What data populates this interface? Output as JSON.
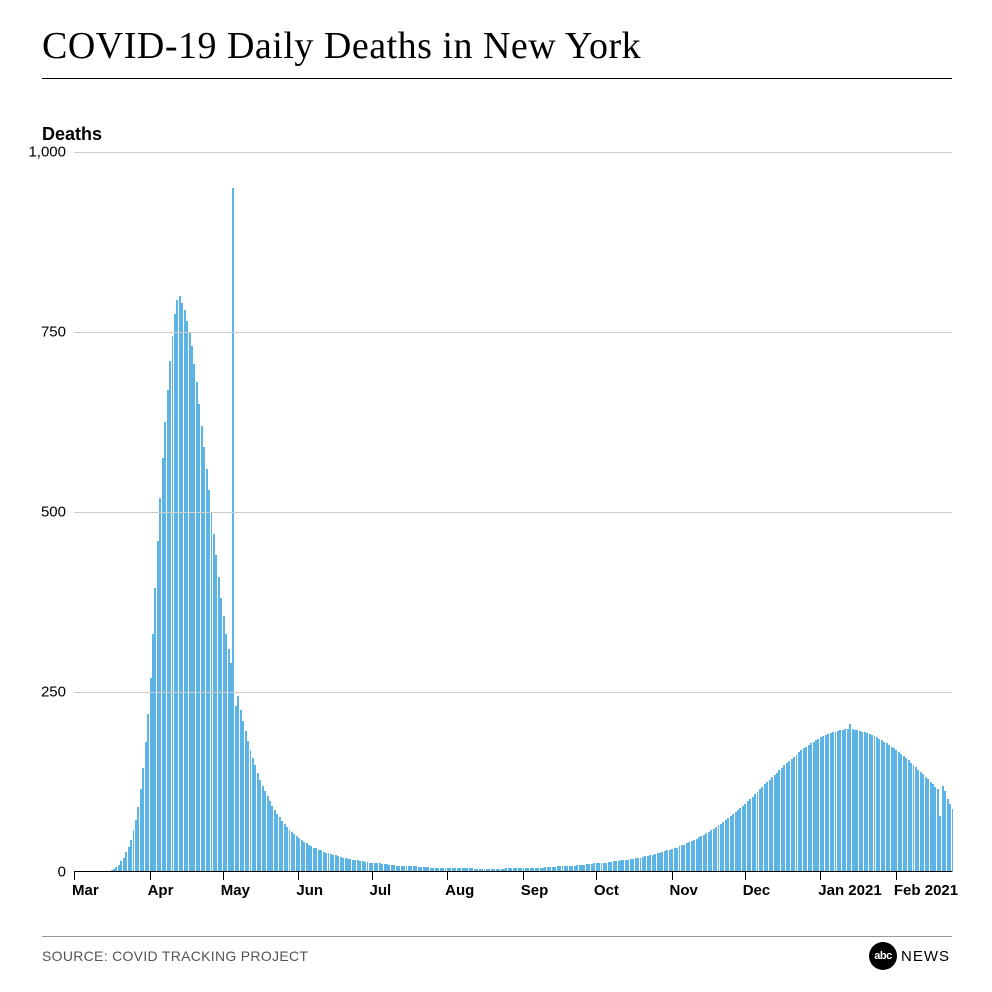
{
  "title": "COVID-19 Daily Deaths in New York",
  "ylabel": "Deaths",
  "source": "SOURCE: COVID TRACKING PROJECT",
  "logo": {
    "circle": "abc",
    "text": "NEWS"
  },
  "chart": {
    "type": "bar",
    "bar_color": "#5bb3e6",
    "background_color": "#ffffff",
    "grid_color": "#cccccc",
    "title_fontsize": 38,
    "label_fontsize": 18,
    "tick_fontsize": 15,
    "ylim": [
      0,
      1000
    ],
    "yticks": [
      {
        "value": 0,
        "label": "0"
      },
      {
        "value": 250,
        "label": "250"
      },
      {
        "value": 500,
        "label": "500"
      },
      {
        "value": 750,
        "label": "750"
      },
      {
        "value": 1000,
        "label": "1,000"
      }
    ],
    "xticks": [
      {
        "index": 0,
        "label": "Mar"
      },
      {
        "index": 31,
        "label": "Apr"
      },
      {
        "index": 61,
        "label": "May"
      },
      {
        "index": 92,
        "label": "Jun"
      },
      {
        "index": 122,
        "label": "Jul"
      },
      {
        "index": 153,
        "label": "Aug"
      },
      {
        "index": 184,
        "label": "Sep"
      },
      {
        "index": 214,
        "label": "Oct"
      },
      {
        "index": 245,
        "label": "Nov"
      },
      {
        "index": 275,
        "label": "Dec"
      },
      {
        "index": 306,
        "label": "Jan 2021"
      },
      {
        "index": 337,
        "label": "Feb 2021"
      }
    ],
    "values": [
      0,
      0,
      0,
      0,
      0,
      0,
      0,
      0,
      0,
      0,
      0,
      0,
      0,
      1,
      2,
      3,
      4,
      7,
      10,
      15,
      20,
      28,
      35,
      44,
      58,
      72,
      90,
      115,
      145,
      180,
      220,
      270,
      330,
      395,
      460,
      520,
      575,
      625,
      670,
      710,
      745,
      775,
      795,
      800,
      790,
      780,
      765,
      750,
      730,
      705,
      680,
      650,
      620,
      590,
      560,
      530,
      500,
      470,
      440,
      410,
      380,
      355,
      330,
      310,
      290,
      950,
      230,
      245,
      225,
      210,
      196,
      182,
      170,
      158,
      148,
      138,
      128,
      120,
      112,
      105,
      98,
      92,
      86,
      81,
      76,
      71,
      67,
      63,
      59,
      56,
      53,
      50,
      47,
      44,
      42,
      40,
      38,
      36,
      34,
      33,
      31,
      30,
      28,
      27,
      26,
      25,
      24,
      23,
      22,
      21,
      20,
      19,
      18,
      18,
      17,
      16,
      16,
      15,
      15,
      14,
      14,
      13,
      13,
      12,
      12,
      12,
      11,
      11,
      11,
      10,
      10,
      10,
      9,
      9,
      9,
      9,
      8,
      8,
      8,
      8,
      8,
      7,
      7,
      7,
      7,
      7,
      6,
      6,
      6,
      6,
      6,
      6,
      6,
      5,
      5,
      5,
      5,
      5,
      5,
      5,
      5,
      5,
      5,
      5,
      4,
      4,
      4,
      4,
      4,
      4,
      4,
      4,
      4,
      4,
      4,
      4,
      4,
      5,
      5,
      5,
      5,
      5,
      5,
      5,
      5,
      5,
      5,
      6,
      6,
      6,
      6,
      6,
      6,
      7,
      7,
      7,
      7,
      7,
      8,
      8,
      8,
      8,
      9,
      9,
      9,
      9,
      10,
      10,
      10,
      10,
      11,
      11,
      11,
      12,
      12,
      12,
      13,
      13,
      13,
      14,
      14,
      15,
      15,
      15,
      16,
      16,
      17,
      17,
      18,
      18,
      19,
      20,
      20,
      21,
      22,
      22,
      23,
      24,
      25,
      26,
      27,
      28,
      29,
      30,
      31,
      32,
      33,
      34,
      36,
      37,
      38,
      40,
      41,
      43,
      44,
      46,
      48,
      50,
      52,
      54,
      56,
      58,
      60,
      62,
      65,
      67,
      70,
      72,
      75,
      78,
      80,
      83,
      86,
      89,
      92,
      95,
      98,
      101,
      104,
      108,
      111,
      115,
      118,
      122,
      125,
      128,
      132,
      135,
      138,
      142,
      145,
      148,
      151,
      154,
      157,
      160,
      163,
      166,
      169,
      172,
      174,
      177,
      179,
      181,
      183,
      185,
      187,
      189,
      190,
      192,
      193,
      194,
      195,
      196,
      197,
      197,
      198,
      198,
      205,
      198,
      197,
      197,
      196,
      195,
      194,
      193,
      192,
      190,
      189,
      187,
      185,
      183,
      181,
      179,
      177,
      174,
      172,
      169,
      167,
      164,
      161,
      158,
      155,
      152,
      149,
      146,
      142,
      139,
      136,
      132,
      129,
      125,
      122,
      118,
      115,
      78,
      120,
      112,
      102,
      95,
      88
    ]
  }
}
